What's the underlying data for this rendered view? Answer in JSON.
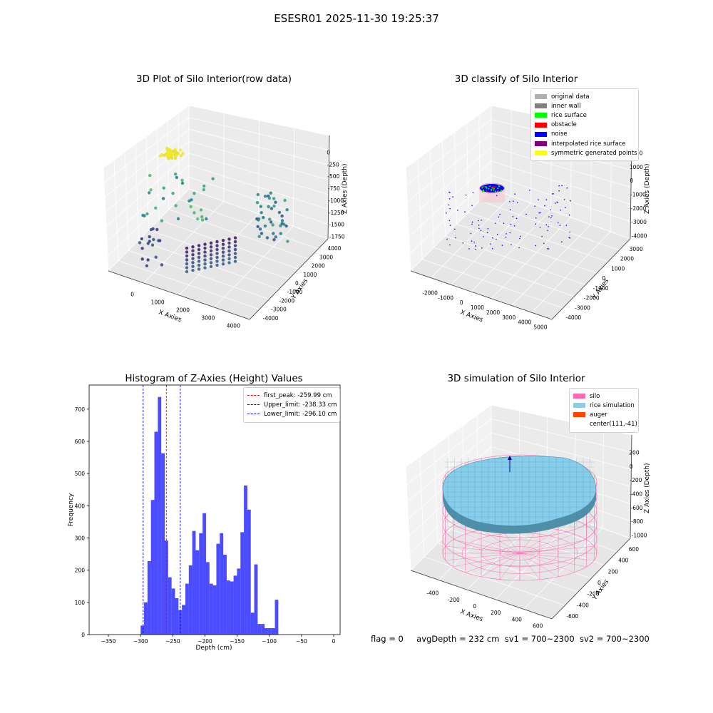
{
  "suptitle": "ESESR01 2025-11-30 19:25:37",
  "panels": {
    "raw": {
      "title": "3D Plot of Silo Interior(row data)",
      "xlabel": "X Axies",
      "ylabel": "Y Axies",
      "zlabel": "Z Axies (Depth)",
      "xticks": [
        "0",
        "1000",
        "2000",
        "3000",
        "4000"
      ],
      "yticks": [
        "-4000",
        "-3000",
        "-2000",
        "-1000",
        "0",
        "1000",
        "2000",
        "3000",
        "4000"
      ],
      "zticks": [
        "0",
        "-250",
        "-500",
        "-750",
        "-1000",
        "-1250",
        "-1500",
        "-1750"
      ]
    },
    "classify": {
      "title": "3D classify of Silo Interior",
      "xlabel": "X Axies",
      "ylabel": "Y Axies",
      "zlabel": "Z Axies (Depth)",
      "xticks": [
        "-2000",
        "-1000",
        "0",
        "1000",
        "2000",
        "3000",
        "4000",
        "5000"
      ],
      "yticks": [
        "-4000",
        "-3000",
        "-2000",
        "-1000",
        "0",
        "1000",
        "2000",
        "3000"
      ],
      "zticks": [
        "2000",
        "1000",
        "0",
        "-1000",
        "-2000",
        "-3000",
        "-4000"
      ],
      "legend": [
        {
          "label": "original data",
          "color": "#b0b0b0"
        },
        {
          "label": "inner wall",
          "color": "#808080"
        },
        {
          "label": "rice surface",
          "color": "#00ff00"
        },
        {
          "label": "obstacle",
          "color": "#ff0000"
        },
        {
          "label": "noise",
          "color": "#0000ff"
        },
        {
          "label": "interpolated rice surface",
          "color": "#800080"
        },
        {
          "label": "symmetric generated points",
          "color": "#ffff00"
        }
      ]
    },
    "simulation": {
      "title": "3D simulation of Silo Interior",
      "xlabel": "X Axies",
      "ylabel": "Y Axies",
      "zlabel": "Z Axies (Depth)",
      "xticks": [
        "-400",
        "-200",
        "0",
        "200",
        "400",
        "600"
      ],
      "yticks": [
        "-600",
        "-400",
        "-200",
        "0",
        "200",
        "400",
        "600"
      ],
      "zticks": [
        "200",
        "0",
        "-200",
        "-400",
        "-600",
        "-800",
        "-1000"
      ],
      "legend": [
        {
          "label": "silo",
          "color": "#ff69b4"
        },
        {
          "label": "rice simulation",
          "color": "#87ceeb"
        },
        {
          "label": "auger",
          "color": "#ff4500"
        },
        {
          "label": "center(111,-41)",
          "color": ""
        }
      ]
    }
  },
  "footer": {
    "flag": "flag = 0",
    "avg": "avgDepth = 232 cm",
    "sv1": "sv1 = 700~2300",
    "sv2": "sv2 = 700~2300"
  },
  "chart_data": {
    "type": "bar",
    "title": "Histogram of Z-Axies (Height) Values",
    "xlabel": "Depth (cm)",
    "ylabel": "Frequency",
    "xlim": [
      -380,
      10
    ],
    "ylim": [
      0,
      775
    ],
    "xticks": [
      -350,
      -300,
      -250,
      -200,
      -150,
      -100,
      -50,
      0
    ],
    "yticks": [
      0,
      100,
      200,
      300,
      400,
      500,
      600,
      700
    ],
    "bins": {
      "start": -300,
      "width": 5.35,
      "values": [
        28,
        100,
        228,
        418,
        630,
        738,
        563,
        292,
        178,
        143,
        113,
        76,
        92,
        158,
        215,
        322,
        262,
        315,
        377,
        225,
        158,
        153,
        282,
        315,
        248,
        168,
        165,
        183,
        205,
        318,
        463,
        388,
        68,
        218,
        33,
        33,
        20,
        20,
        20,
        108
      ]
    },
    "color": "#0000ff",
    "vlines": [
      {
        "label": "first_peak: -259.99 cm",
        "x": -259.99,
        "color": "#ff0000"
      },
      {
        "label": "Upper_limit: -238.33 cm",
        "x": -238.33,
        "color": "#0000ff"
      },
      {
        "label": "Lower_limit: -296.10 cm",
        "x": -296.1,
        "color": "#0000ff"
      }
    ]
  }
}
